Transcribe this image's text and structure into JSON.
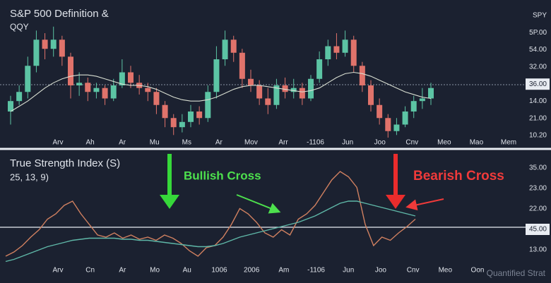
{
  "chart_data": [
    {
      "type": "candlestick",
      "title": "S&P 500 Definition &",
      "subtitle": "QQY",
      "y_labels": [
        "SPY",
        "5P.00",
        "54.00",
        "32.00",
        "36.00",
        "14.00",
        "21.00",
        "10.20"
      ],
      "x_labels": [
        "Arv",
        "Ah",
        "Ar",
        "Mu",
        "Ms",
        "Ar",
        "Mov",
        "Arr",
        "-1106",
        "Jun",
        "Joo",
        "Cnv",
        "Meo",
        "Mao",
        "Mem"
      ],
      "ylim": [
        0,
        100
      ],
      "up_color": "#5cc4a4",
      "down_color": "#e0736b",
      "open": [
        20,
        28,
        35,
        55,
        75,
        68,
        75,
        62,
        40,
        42,
        35,
        38,
        30,
        40,
        50,
        42,
        38,
        35,
        25,
        15,
        8,
        12,
        20,
        15,
        35,
        60,
        75,
        65,
        45,
        40,
        30,
        25,
        40,
        35,
        38,
        30,
        45,
        60,
        70,
        65,
        75,
        55,
        40,
        25,
        15,
        5,
        10,
        20,
        28,
        30
      ],
      "close": [
        28,
        35,
        55,
        75,
        68,
        75,
        62,
        40,
        42,
        35,
        38,
        30,
        40,
        50,
        42,
        38,
        35,
        25,
        15,
        8,
        12,
        20,
        15,
        35,
        60,
        75,
        65,
        45,
        40,
        30,
        25,
        40,
        35,
        38,
        30,
        45,
        60,
        70,
        65,
        75,
        55,
        40,
        25,
        15,
        5,
        10,
        20,
        28,
        30,
        38
      ],
      "high": [
        32,
        40,
        62,
        82,
        80,
        85,
        78,
        65,
        50,
        46,
        42,
        40,
        45,
        60,
        55,
        48,
        42,
        38,
        28,
        18,
        18,
        25,
        24,
        40,
        70,
        82,
        78,
        68,
        52,
        44,
        38,
        45,
        46,
        45,
        42,
        48,
        66,
        75,
        80,
        82,
        78,
        58,
        44,
        30,
        18,
        15,
        24,
        32,
        38,
        42
      ],
      "low": [
        10,
        25,
        30,
        50,
        60,
        62,
        55,
        30,
        32,
        28,
        30,
        25,
        28,
        38,
        38,
        33,
        28,
        18,
        8,
        2,
        4,
        8,
        10,
        12,
        30,
        55,
        58,
        38,
        35,
        25,
        18,
        22,
        30,
        30,
        25,
        28,
        42,
        55,
        60,
        62,
        50,
        35,
        20,
        10,
        0,
        2,
        8,
        15,
        22,
        25
      ],
      "series": [
        {
          "color": "#d9dfd2",
          "values": [
            20,
            24,
            28,
            33,
            38,
            42,
            45,
            47,
            48,
            48,
            47,
            45,
            43,
            41,
            40,
            40,
            39,
            37,
            34,
            31,
            29,
            28,
            28,
            29,
            31,
            34,
            37,
            39,
            40,
            40,
            39,
            38,
            37,
            36,
            35,
            36,
            38,
            42,
            46,
            49,
            50,
            49,
            47,
            44,
            41,
            38,
            35,
            33,
            31,
            30
          ]
        }
      ]
    },
    {
      "type": "line",
      "title": "True Strength Index (S)",
      "subtitle": "25, 13, 9)",
      "y_labels": [
        "35.00",
        "23.00",
        "22.00",
        "45.00",
        "13.00"
      ],
      "x_labels": [
        "Arv",
        "Cn",
        "Ar",
        "Mo",
        "Au",
        "1006",
        "2006",
        "Am",
        "-1106",
        "Jun",
        "Joo",
        "Cnv",
        "Meo",
        "Oon"
      ],
      "watermark": "Quantified Strat",
      "annotations": [
        "Bullish Cross",
        "Bearish Cross"
      ],
      "ylim": [
        0,
        100
      ],
      "series": [
        {
          "color": "#d08060",
          "values": [
            10,
            14,
            20,
            28,
            35,
            45,
            50,
            58,
            62,
            50,
            40,
            30,
            28,
            32,
            27,
            30,
            26,
            28,
            25,
            30,
            27,
            22,
            15,
            10,
            18,
            20,
            28,
            40,
            55,
            50,
            42,
            32,
            28,
            35,
            30,
            45,
            50,
            58,
            70,
            82,
            90,
            85,
            75,
            40,
            20,
            28,
            25,
            32,
            38,
            45
          ]
        },
        {
          "color": "#5fb8a8",
          "values": [
            5,
            7,
            10,
            13,
            16,
            19,
            21,
            23,
            25,
            26,
            27,
            27,
            27,
            27,
            26,
            26,
            25,
            25,
            24,
            23,
            22,
            21,
            20,
            19,
            19,
            20,
            22,
            25,
            28,
            30,
            32,
            34,
            36,
            38,
            40,
            42,
            45,
            48,
            52,
            56,
            60,
            62,
            62,
            60,
            58,
            56,
            54,
            52,
            50,
            48
          ]
        }
      ]
    }
  ]
}
